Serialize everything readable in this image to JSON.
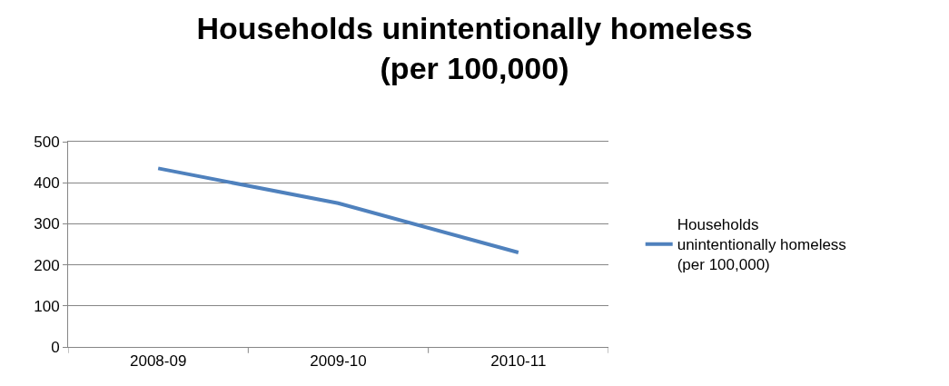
{
  "chart_data": {
    "type": "line",
    "title": "Households unintentionally homeless (per 100,000)",
    "categories": [
      "2008-09",
      "2009-10",
      "2010-11"
    ],
    "series": [
      {
        "name": "Households unintentionally homeless (per 100,000)",
        "color": "#4f81bd",
        "values": [
          435,
          350,
          230
        ]
      }
    ],
    "ylim": [
      0,
      500
    ],
    "yticks": [
      0,
      100,
      200,
      300,
      400,
      500
    ],
    "grid": "y",
    "legend": "right",
    "marker": "none",
    "line_style": "solid"
  }
}
